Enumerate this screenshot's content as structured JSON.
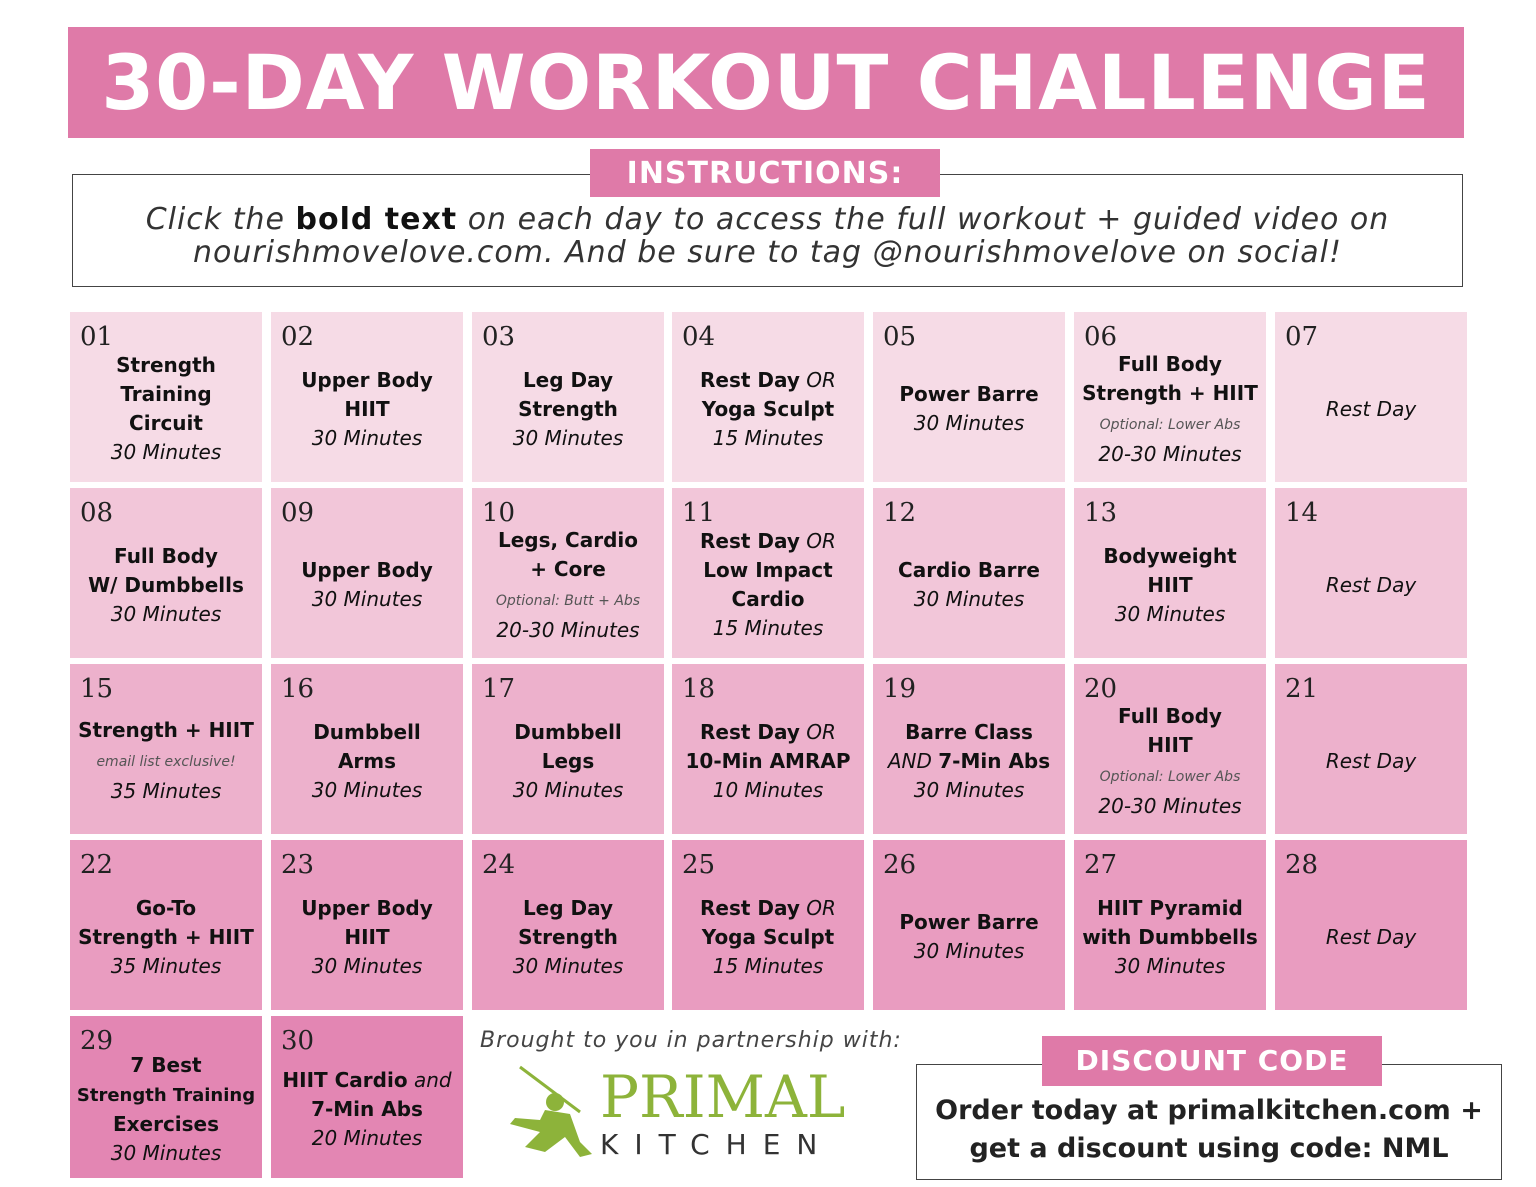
{
  "colors": {
    "accent": "#df7aa8",
    "rows": [
      "#f6dbe6",
      "#f2c6d9",
      "#edb1cc",
      "#e99cc0",
      "#e386b3"
    ],
    "logo_green": "#8db33a"
  },
  "title": "30-DAY WORKOUT CHALLENGE",
  "instructions": {
    "label": "INSTRUCTIONS:",
    "pre": "Click the ",
    "bold": "bold text",
    "post": " on each day to access the full workout + guided video on nourishmovelove.com. And be sure to tag @nourishmovelove on social!"
  },
  "days": [
    {
      "day": "01",
      "lines": [
        [
          [
            "Strength",
            "b"
          ]
        ],
        [
          [
            "Training",
            "b"
          ]
        ],
        [
          [
            "Circuit",
            "b"
          ]
        ],
        [
          [
            "30 Minutes",
            "i"
          ]
        ]
      ]
    },
    {
      "day": "02",
      "lines": [
        [
          [
            "Upper Body",
            "b"
          ]
        ],
        [
          [
            "HIIT",
            "b"
          ]
        ],
        [
          [
            "30 Minutes",
            "i"
          ]
        ]
      ]
    },
    {
      "day": "03",
      "lines": [
        [
          [
            "Leg Day",
            "b"
          ]
        ],
        [
          [
            "Strength",
            "b"
          ]
        ],
        [
          [
            "30 Minutes",
            "i"
          ]
        ]
      ]
    },
    {
      "day": "04",
      "lines": [
        [
          [
            "Rest Day",
            "b"
          ],
          [
            " OR",
            "i"
          ]
        ],
        [
          [
            "Yoga Sculpt",
            "b"
          ]
        ],
        [
          [
            "15 Minutes",
            "i"
          ]
        ]
      ]
    },
    {
      "day": "05",
      "lines": [
        [
          [
            "Power Barre",
            "b"
          ]
        ],
        [
          [
            "30 Minutes",
            "i"
          ]
        ]
      ]
    },
    {
      "day": "06",
      "lines": [
        [
          [
            "Full Body",
            "b"
          ]
        ],
        [
          [
            "Strength + HIIT",
            "b"
          ]
        ],
        [
          [
            "Optional: Lower Abs",
            "o"
          ]
        ],
        [
          [
            "20-30 Minutes",
            "i"
          ]
        ]
      ]
    },
    {
      "day": "07",
      "lines": [
        [
          [
            "Rest Day",
            "i"
          ]
        ]
      ]
    },
    {
      "day": "08",
      "lines": [
        [
          [
            "Full Body",
            "b"
          ]
        ],
        [
          [
            "W/ Dumbbells",
            "b"
          ]
        ],
        [
          [
            "30 Minutes",
            "i"
          ]
        ]
      ]
    },
    {
      "day": "09",
      "lines": [
        [
          [
            "Upper Body",
            "b"
          ]
        ],
        [
          [
            "30 Minutes",
            "i"
          ]
        ]
      ]
    },
    {
      "day": "10",
      "lines": [
        [
          [
            "Legs, Cardio",
            "b"
          ]
        ],
        [
          [
            "+ Core",
            "b"
          ]
        ],
        [
          [
            "Optional: Butt + Abs",
            "o"
          ]
        ],
        [
          [
            "20-30 Minutes",
            "i"
          ]
        ]
      ]
    },
    {
      "day": "11",
      "lines": [
        [
          [
            "Rest Day",
            "b"
          ],
          [
            " OR",
            "i"
          ]
        ],
        [
          [
            "Low Impact",
            "b"
          ]
        ],
        [
          [
            "Cardio",
            "b"
          ]
        ],
        [
          [
            "15 Minutes",
            "i"
          ]
        ]
      ]
    },
    {
      "day": "12",
      "lines": [
        [
          [
            "Cardio Barre",
            "b"
          ]
        ],
        [
          [
            "30 Minutes",
            "i"
          ]
        ]
      ]
    },
    {
      "day": "13",
      "lines": [
        [
          [
            "Bodyweight",
            "b"
          ]
        ],
        [
          [
            "HIIT",
            "b"
          ]
        ],
        [
          [
            "30 Minutes",
            "i"
          ]
        ]
      ]
    },
    {
      "day": "14",
      "lines": [
        [
          [
            "Rest Day",
            "i"
          ]
        ]
      ]
    },
    {
      "day": "15",
      "lines": [
        [
          [
            "Strength + HIIT",
            "b"
          ]
        ],
        [
          [
            "email list exclusive!",
            "o"
          ]
        ],
        [
          [
            "35 Minutes",
            "i"
          ]
        ]
      ]
    },
    {
      "day": "16",
      "lines": [
        [
          [
            "Dumbbell",
            "b"
          ]
        ],
        [
          [
            "Arms",
            "b"
          ]
        ],
        [
          [
            "30 Minutes",
            "i"
          ]
        ]
      ]
    },
    {
      "day": "17",
      "lines": [
        [
          [
            "Dumbbell",
            "b"
          ]
        ],
        [
          [
            "Legs",
            "b"
          ]
        ],
        [
          [
            "30 Minutes",
            "i"
          ]
        ]
      ]
    },
    {
      "day": "18",
      "lines": [
        [
          [
            "Rest Day",
            "b"
          ],
          [
            " OR",
            "i"
          ]
        ],
        [
          [
            "10-Min AMRAP",
            "b"
          ]
        ],
        [
          [
            "10 Minutes",
            "i"
          ]
        ]
      ]
    },
    {
      "day": "19",
      "lines": [
        [
          [
            "Barre Class",
            "b"
          ]
        ],
        [
          [
            "AND ",
            "i"
          ],
          [
            "7-Min Abs",
            "b"
          ]
        ],
        [
          [
            "30 Minutes",
            "i"
          ]
        ]
      ]
    },
    {
      "day": "20",
      "lines": [
        [
          [
            "Full Body",
            "b"
          ]
        ],
        [
          [
            "HIIT",
            "b"
          ]
        ],
        [
          [
            "Optional: Lower Abs",
            "o"
          ]
        ],
        [
          [
            "20-30 Minutes",
            "i"
          ]
        ]
      ]
    },
    {
      "day": "21",
      "lines": [
        [
          [
            "Rest Day",
            "i"
          ]
        ]
      ]
    },
    {
      "day": "22",
      "lines": [
        [
          [
            "Go-To",
            "b"
          ]
        ],
        [
          [
            "Strength + HIIT",
            "b"
          ]
        ],
        [
          [
            "35 Minutes",
            "i"
          ]
        ]
      ]
    },
    {
      "day": "23",
      "lines": [
        [
          [
            "Upper Body",
            "b"
          ]
        ],
        [
          [
            "HIIT",
            "b"
          ]
        ],
        [
          [
            "30 Minutes",
            "i"
          ]
        ]
      ]
    },
    {
      "day": "24",
      "lines": [
        [
          [
            "Leg Day",
            "b"
          ]
        ],
        [
          [
            "Strength",
            "b"
          ]
        ],
        [
          [
            "30 Minutes",
            "i"
          ]
        ]
      ]
    },
    {
      "day": "25",
      "lines": [
        [
          [
            "Rest Day",
            "b"
          ],
          [
            " OR",
            "i"
          ]
        ],
        [
          [
            "Yoga Sculpt",
            "b"
          ]
        ],
        [
          [
            "15 Minutes",
            "i"
          ]
        ]
      ]
    },
    {
      "day": "26",
      "lines": [
        [
          [
            "Power Barre",
            "b"
          ]
        ],
        [
          [
            "30 Minutes",
            "i"
          ]
        ]
      ]
    },
    {
      "day": "27",
      "lines": [
        [
          [
            "HIIT Pyramid",
            "b"
          ]
        ],
        [
          [
            "with Dumbbells",
            "b"
          ]
        ],
        [
          [
            "30 Minutes",
            "i"
          ]
        ]
      ]
    },
    {
      "day": "28",
      "lines": [
        [
          [
            "Rest Day",
            "i"
          ]
        ]
      ]
    },
    {
      "day": "29",
      "lines": [
        [
          [
            "7 Best",
            "b"
          ]
        ],
        [
          [
            "Strength Training",
            "b small"
          ]
        ],
        [
          [
            "Exercises",
            "b"
          ]
        ],
        [
          [
            "30 Minutes",
            "i"
          ]
        ]
      ]
    },
    {
      "day": "30",
      "lines": [
        [
          [
            "HIIT Cardio",
            "b"
          ],
          [
            " and",
            "i"
          ]
        ],
        [
          [
            "7-Min Abs",
            "b"
          ]
        ],
        [
          [
            "20 Minutes",
            "i"
          ]
        ]
      ]
    }
  ],
  "partner": {
    "text": "Brought to you in partnership with:",
    "logo_top": "PRIMAL",
    "logo_bottom": "KITCHEN"
  },
  "discount": {
    "label": "DISCOUNT CODE",
    "line1": "Order today at primalkitchen.com +",
    "line2": "get a discount using code: NML"
  }
}
